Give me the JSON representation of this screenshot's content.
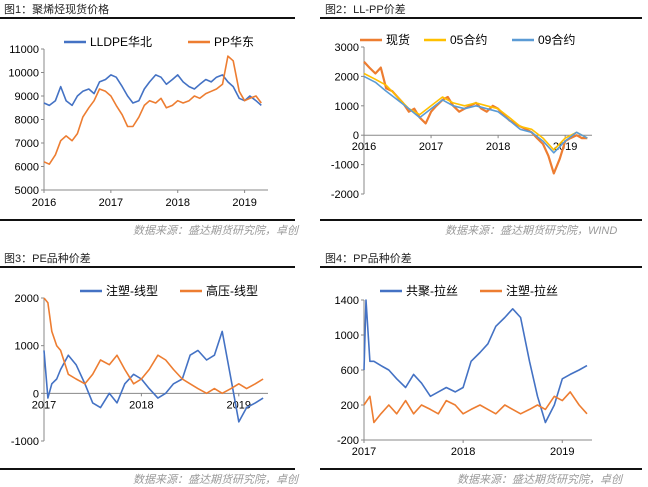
{
  "figures": [
    {
      "title": "图1：聚烯烃现货价格",
      "source": "数据来源：盛达期货研究院，卓创"
    },
    {
      "title": "图2：LL-PP价差",
      "source": "数据来源：盛达期货研究院，WIND"
    },
    {
      "title": "图3：PE品种价差",
      "source": "数据来源：盛达期货研究院，卓创"
    },
    {
      "title": "图4：PP品种价差",
      "source": "数据来源：盛达期货研究院，卓创"
    }
  ],
  "colors": {
    "blue": "#4472c4",
    "orange": "#ed7d31",
    "yellow": "#ffc000",
    "lightblue": "#5b9bd5"
  },
  "chart_data": [
    {
      "type": "line",
      "title": "",
      "ylim": [
        5000,
        11000
      ],
      "yticks": [
        "5000",
        "6000",
        "7000",
        "8000",
        "9000",
        "10000",
        "11000"
      ],
      "xlim": [
        2016.0,
        2019.35
      ],
      "xticks": [
        "2016",
        "2017",
        "2018",
        "2019"
      ],
      "legend_position": "top-left",
      "series": [
        {
          "name": "LLDPE华北",
          "color": "#4472c4",
          "x": [
            2016.0,
            2016.08,
            2016.17,
            2016.25,
            2016.33,
            2016.42,
            2016.5,
            2016.58,
            2016.67,
            2016.75,
            2016.83,
            2016.92,
            2017.0,
            2017.08,
            2017.17,
            2017.25,
            2017.33,
            2017.42,
            2017.5,
            2017.58,
            2017.67,
            2017.75,
            2017.83,
            2017.92,
            2018.0,
            2018.08,
            2018.17,
            2018.25,
            2018.33,
            2018.42,
            2018.5,
            2018.58,
            2018.67,
            2018.75,
            2018.83,
            2018.92,
            2019.0,
            2019.08,
            2019.17,
            2019.25
          ],
          "y": [
            8700,
            8600,
            8800,
            9400,
            8800,
            8600,
            9000,
            9200,
            9300,
            9100,
            9600,
            9700,
            9900,
            9800,
            9400,
            9000,
            8700,
            8800,
            9300,
            9600,
            9900,
            9800,
            9500,
            9700,
            9900,
            9600,
            9400,
            9300,
            9500,
            9700,
            9600,
            9800,
            9900,
            9600,
            9400,
            8900,
            8800,
            9000,
            8800,
            8600
          ]
        },
        {
          "name": "PP华东",
          "color": "#ed7d31",
          "x": [
            2016.0,
            2016.08,
            2016.17,
            2016.25,
            2016.33,
            2016.42,
            2016.5,
            2016.58,
            2016.67,
            2016.75,
            2016.83,
            2016.92,
            2017.0,
            2017.08,
            2017.17,
            2017.25,
            2017.33,
            2017.42,
            2017.5,
            2017.58,
            2017.67,
            2017.75,
            2017.83,
            2017.92,
            2018.0,
            2018.08,
            2018.17,
            2018.25,
            2018.33,
            2018.42,
            2018.5,
            2018.58,
            2018.67,
            2018.75,
            2018.83,
            2018.92,
            2019.0,
            2019.08,
            2019.17,
            2019.25
          ],
          "y": [
            6200,
            6100,
            6500,
            7100,
            7300,
            7100,
            7400,
            8100,
            8500,
            8800,
            9300,
            9200,
            9000,
            8600,
            8200,
            7700,
            7700,
            8100,
            8600,
            8800,
            8700,
            8900,
            8500,
            8600,
            8800,
            8700,
            8800,
            9000,
            8900,
            9100,
            9200,
            9300,
            9500,
            10700,
            10500,
            9200,
            8800,
            8900,
            9000,
            8700
          ]
        }
      ]
    },
    {
      "type": "line",
      "title": "",
      "ylim": [
        -2000,
        3000
      ],
      "yticks": [
        "-2000",
        "-1000",
        "0",
        "1000",
        "2000",
        "3000"
      ],
      "xlim": [
        2016.0,
        2019.4
      ],
      "xticks": [
        "2016",
        "2017",
        "2018",
        "2019"
      ],
      "legend_position": "top-left",
      "series": [
        {
          "name": "现货",
          "color": "#ed7d31",
          "x": [
            2016.0,
            2016.08,
            2016.17,
            2016.25,
            2016.33,
            2016.42,
            2016.5,
            2016.58,
            2016.67,
            2016.75,
            2016.83,
            2016.92,
            2017.0,
            2017.08,
            2017.17,
            2017.25,
            2017.33,
            2017.42,
            2017.5,
            2017.58,
            2017.67,
            2017.75,
            2017.83,
            2017.92,
            2018.0,
            2018.08,
            2018.17,
            2018.25,
            2018.33,
            2018.42,
            2018.5,
            2018.58,
            2018.67,
            2018.75,
            2018.83,
            2018.92,
            2019.0,
            2019.08,
            2019.17,
            2019.25,
            2019.33
          ],
          "y": [
            2500,
            2300,
            2100,
            2300,
            1600,
            1500,
            1300,
            1100,
            800,
            900,
            600,
            400,
            800,
            1000,
            1200,
            1300,
            1000,
            800,
            900,
            1000,
            1100,
            900,
            800,
            1000,
            900,
            700,
            500,
            400,
            300,
            200,
            100,
            -100,
            -300,
            -700,
            -1300,
            -800,
            -200,
            -100,
            0,
            -100,
            -100
          ]
        },
        {
          "name": "05合约",
          "color": "#ffc000",
          "x": [
            2016.0,
            2016.17,
            2016.33,
            2016.5,
            2016.67,
            2016.83,
            2017.0,
            2017.17,
            2017.33,
            2017.5,
            2017.67,
            2017.83,
            2018.0,
            2018.17,
            2018.33,
            2018.5,
            2018.67,
            2018.83,
            2019.0,
            2019.17,
            2019.33
          ],
          "y": [
            2100,
            1900,
            1700,
            1300,
            900,
            700,
            1000,
            1300,
            1100,
            1000,
            1100,
            1000,
            900,
            600,
            300,
            200,
            -100,
            -500,
            -100,
            100,
            -100
          ]
        },
        {
          "name": "09合约",
          "color": "#5b9bd5",
          "x": [
            2016.0,
            2016.17,
            2016.33,
            2016.5,
            2016.67,
            2016.83,
            2017.0,
            2017.17,
            2017.33,
            2017.5,
            2017.67,
            2017.83,
            2018.0,
            2018.17,
            2018.33,
            2018.5,
            2018.67,
            2018.83,
            2019.0,
            2019.17,
            2019.33
          ],
          "y": [
            2000,
            1800,
            1500,
            1200,
            900,
            600,
            900,
            1200,
            1000,
            900,
            1000,
            900,
            800,
            500,
            200,
            100,
            -200,
            -600,
            -200,
            100,
            -100
          ]
        }
      ]
    },
    {
      "type": "line",
      "title": "",
      "ylim": [
        -1000,
        2000
      ],
      "yticks": [
        "-1000",
        "0",
        "1000",
        "2000"
      ],
      "xlim": [
        2017.0,
        2019.3
      ],
      "xticks": [
        "2017",
        "2018",
        "2019"
      ],
      "legend_position": "top-center",
      "series": [
        {
          "name": "注塑-线型",
          "color": "#4472c4",
          "x": [
            2017.0,
            2017.04,
            2017.08,
            2017.13,
            2017.17,
            2017.25,
            2017.33,
            2017.42,
            2017.5,
            2017.58,
            2017.67,
            2017.75,
            2017.83,
            2017.92,
            2018.0,
            2018.08,
            2018.17,
            2018.25,
            2018.33,
            2018.42,
            2018.5,
            2018.58,
            2018.67,
            2018.75,
            2018.83,
            2018.92,
            2019.0,
            2019.08,
            2019.17,
            2019.25
          ],
          "y": [
            900,
            -100,
            200,
            300,
            500,
            800,
            600,
            200,
            -200,
            -300,
            0,
            -200,
            200,
            400,
            300,
            100,
            -100,
            0,
            200,
            300,
            800,
            900,
            700,
            800,
            1300,
            300,
            -600,
            -300,
            -200,
            -100
          ]
        },
        {
          "name": "高压-线型",
          "color": "#ed7d31",
          "x": [
            2017.0,
            2017.04,
            2017.08,
            2017.13,
            2017.17,
            2017.25,
            2017.33,
            2017.42,
            2017.5,
            2017.58,
            2017.67,
            2017.75,
            2017.83,
            2017.92,
            2018.0,
            2018.08,
            2018.17,
            2018.25,
            2018.33,
            2018.42,
            2018.5,
            2018.58,
            2018.67,
            2018.75,
            2018.83,
            2018.92,
            2019.0,
            2019.08,
            2019.17,
            2019.25
          ],
          "y": [
            2000,
            1900,
            1300,
            1000,
            900,
            400,
            300,
            200,
            400,
            700,
            600,
            800,
            500,
            200,
            300,
            500,
            800,
            700,
            500,
            300,
            200,
            100,
            0,
            100,
            0,
            100,
            200,
            100,
            200,
            300
          ]
        }
      ]
    },
    {
      "type": "line",
      "title": "",
      "ylim": [
        -200,
        1400
      ],
      "yticks": [
        "-200",
        "200",
        "600",
        "1000",
        "1400"
      ],
      "xlim": [
        2017.0,
        2019.3
      ],
      "xticks": [
        "2017",
        "2018",
        "2019"
      ],
      "legend_position": "top-center",
      "series": [
        {
          "name": "共聚-拉丝",
          "color": "#4472c4",
          "x": [
            2017.0,
            2017.02,
            2017.06,
            2017.1,
            2017.17,
            2017.25,
            2017.33,
            2017.42,
            2017.5,
            2017.58,
            2017.67,
            2017.75,
            2017.83,
            2017.92,
            2018.0,
            2018.08,
            2018.17,
            2018.25,
            2018.33,
            2018.42,
            2018.5,
            2018.58,
            2018.67,
            2018.75,
            2018.83,
            2018.92,
            2019.0,
            2019.08,
            2019.17,
            2019.25
          ],
          "y": [
            600,
            1400,
            700,
            700,
            650,
            600,
            500,
            400,
            550,
            450,
            300,
            350,
            400,
            350,
            400,
            700,
            800,
            900,
            1100,
            1200,
            1300,
            1200,
            700,
            300,
            0,
            200,
            500,
            550,
            600,
            650
          ]
        },
        {
          "name": "注塑-拉丝",
          "color": "#ed7d31",
          "x": [
            2017.0,
            2017.06,
            2017.1,
            2017.17,
            2017.25,
            2017.33,
            2017.42,
            2017.5,
            2017.58,
            2017.67,
            2017.75,
            2017.83,
            2017.92,
            2018.0,
            2018.08,
            2018.17,
            2018.25,
            2018.33,
            2018.42,
            2018.5,
            2018.58,
            2018.67,
            2018.75,
            2018.83,
            2018.92,
            2019.0,
            2019.08,
            2019.17,
            2019.25
          ],
          "y": [
            200,
            300,
            0,
            100,
            200,
            100,
            250,
            100,
            200,
            150,
            100,
            250,
            200,
            100,
            150,
            200,
            150,
            100,
            200,
            150,
            100,
            150,
            200,
            150,
            300,
            250,
            350,
            200,
            100
          ]
        }
      ]
    }
  ]
}
